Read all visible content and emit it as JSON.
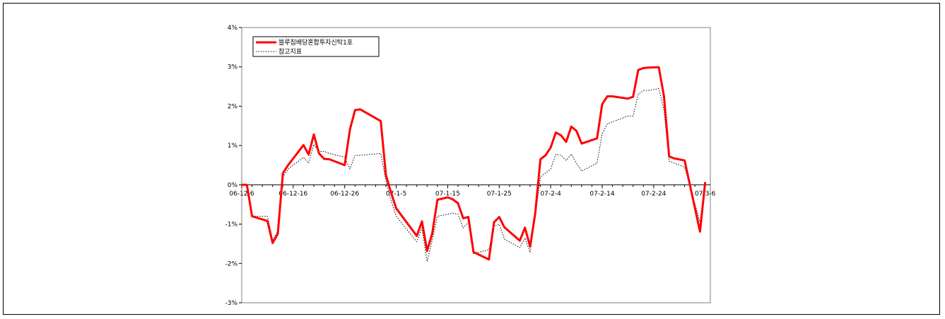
{
  "chart_data": {
    "type": "line",
    "title": "",
    "xlabel": "",
    "ylabel": "",
    "ylim": [
      -3,
      4
    ],
    "yticks": [
      4,
      3,
      2,
      1,
      0,
      -1,
      -2,
      -3
    ],
    "ytick_labels": [
      "4%",
      "3%",
      "2%",
      "1%",
      "0%",
      "-1%",
      "-2%",
      "-3%"
    ],
    "xticks": [
      {
        "label": "06-12-6",
        "day": 0
      },
      {
        "label": "06-12-16",
        "day": 10
      },
      {
        "label": "06-12-26",
        "day": 20
      },
      {
        "label": "07-1-5",
        "day": 30
      },
      {
        "label": "07-1-15",
        "day": 40
      },
      {
        "label": "07-1-25",
        "day": 50
      },
      {
        "label": "07-2-4",
        "day": 60
      },
      {
        "label": "07-2-14",
        "day": 70
      },
      {
        "label": "07-2-24",
        "day": 80
      },
      {
        "label": "07-3-6",
        "day": 90
      }
    ],
    "xlim": [
      0,
      91
    ],
    "grid": false,
    "legend_position": "top-left",
    "series": [
      {
        "name": "블루칩배당혼합투자신탁1호",
        "color": "#ff0000",
        "style": "solid",
        "x": [
          0,
          1,
          2,
          5,
          6,
          7,
          8,
          9,
          12,
          13,
          14,
          15,
          16,
          17,
          20,
          21,
          22,
          23,
          27,
          28,
          29,
          30,
          34,
          35,
          36,
          37,
          38,
          40,
          41,
          42,
          43,
          44,
          45,
          48,
          49,
          50,
          51,
          54,
          55,
          56,
          57,
          58,
          59,
          60,
          61,
          62,
          63,
          64,
          65,
          66,
          69,
          70,
          71,
          72,
          75,
          76,
          77,
          78,
          79,
          81,
          82,
          83,
          84,
          86,
          89,
          90
        ],
        "values": [
          0,
          0,
          -0.8,
          -0.92,
          -1.48,
          -1.25,
          0.3,
          0.5,
          1.01,
          0.77,
          1.28,
          0.8,
          0.66,
          0.65,
          0.5,
          1.4,
          1.9,
          1.92,
          1.62,
          0.25,
          -0.2,
          -0.6,
          -1.3,
          -0.93,
          -1.68,
          -1.23,
          -0.38,
          -0.32,
          -0.37,
          -0.47,
          -0.85,
          -0.82,
          -1.71,
          -1.9,
          -0.95,
          -0.82,
          -1.08,
          -1.42,
          -1.09,
          -1.57,
          -0.72,
          0.65,
          0.75,
          0.95,
          1.33,
          1.26,
          1.09,
          1.48,
          1.37,
          1.05,
          1.18,
          2.05,
          2.25,
          2.25,
          2.19,
          2.24,
          2.92,
          2.97,
          2.98,
          2.99,
          2.25,
          0.72,
          0.67,
          0.62,
          -1.19,
          0.07
        ]
      },
      {
        "name": "참고지표",
        "color": "#000000",
        "style": "dotted",
        "x": [
          0,
          1,
          2,
          5,
          6,
          7,
          8,
          9,
          12,
          13,
          14,
          15,
          16,
          17,
          20,
          21,
          22,
          23,
          27,
          28,
          29,
          30,
          34,
          35,
          36,
          37,
          38,
          40,
          41,
          42,
          43,
          44,
          45,
          48,
          49,
          50,
          51,
          54,
          55,
          56,
          57,
          58,
          59,
          60,
          61,
          62,
          63,
          64,
          65,
          66,
          69,
          70,
          71,
          72,
          75,
          76,
          77,
          78,
          79,
          81,
          82,
          83,
          84,
          86,
          89,
          90
        ],
        "values": [
          0,
          0,
          -0.8,
          -0.8,
          -1.4,
          -1.18,
          0.2,
          0.4,
          0.7,
          0.55,
          1.03,
          0.85,
          0.85,
          0.8,
          0.7,
          0.4,
          0.75,
          0.75,
          0.8,
          0.1,
          -0.4,
          -0.8,
          -1.45,
          -1.1,
          -1.95,
          -1.4,
          -0.8,
          -0.75,
          -0.72,
          -0.75,
          -1.1,
          -0.95,
          -1.75,
          -1.65,
          -1.05,
          -1.0,
          -1.38,
          -1.6,
          -1.35,
          -1.72,
          -0.8,
          0.2,
          0.3,
          0.4,
          0.78,
          0.75,
          0.62,
          0.78,
          0.55,
          0.35,
          0.55,
          1.3,
          1.55,
          1.6,
          1.75,
          1.75,
          2.3,
          2.4,
          2.4,
          2.45,
          1.9,
          0.6,
          0.55,
          0.45,
          -0.95,
          0.07
        ]
      }
    ]
  }
}
